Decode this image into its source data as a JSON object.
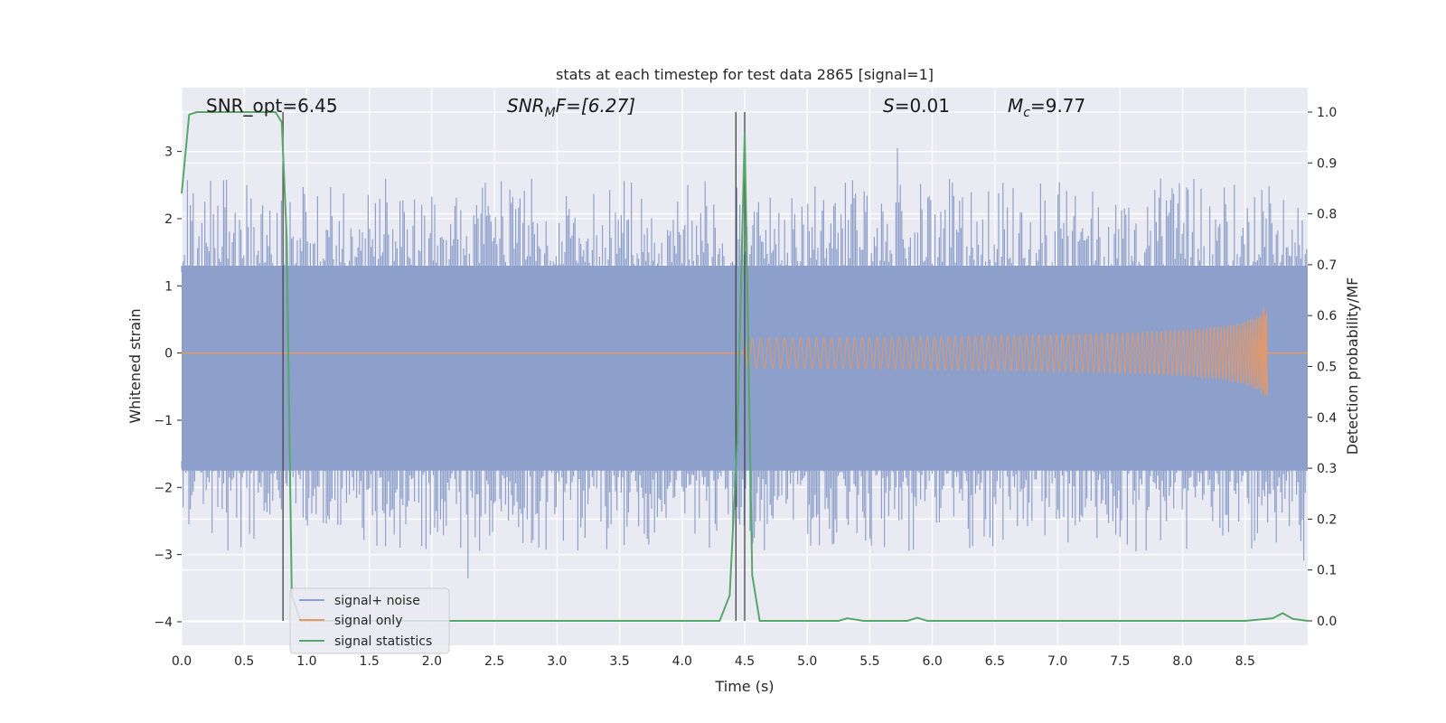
{
  "chart_data": {
    "type": "line",
    "title": "stats at each timestep for test data 2865 [signal=1]",
    "xlabel": "Time (s)",
    "ylabel_left": "Whitened strain",
    "ylabel_right": "Detection probability/MF",
    "xlim": [
      0.0,
      9.0
    ],
    "ylim_left": [
      -4.35,
      3.95
    ],
    "ylim_right": [
      -0.048,
      1.048
    ],
    "x_ticks": [
      "0.0",
      "0.5",
      "1.0",
      "1.5",
      "2.0",
      "2.5",
      "3.0",
      "3.5",
      "4.0",
      "4.5",
      "5.0",
      "5.5",
      "6.0",
      "6.5",
      "7.0",
      "7.5",
      "8.0",
      "8.5"
    ],
    "x_tick_values": [
      0.0,
      0.5,
      1.0,
      1.5,
      2.0,
      2.5,
      3.0,
      3.5,
      4.0,
      4.5,
      5.0,
      5.5,
      6.0,
      6.5,
      7.0,
      7.5,
      8.0,
      8.5
    ],
    "y_ticks_left": [
      "3",
      "2",
      "1",
      "0",
      "−1",
      "−2",
      "−3",
      "−4"
    ],
    "y_tick_values_left": [
      3,
      2,
      1,
      0,
      -1,
      -2,
      -3,
      -4
    ],
    "y_ticks_right": [
      "1.0",
      "0.9",
      "0.8",
      "0.7",
      "0.6",
      "0.5",
      "0.4",
      "0.3",
      "0.2",
      "0.1",
      "0.0"
    ],
    "y_tick_values_right": [
      1.0,
      0.9,
      0.8,
      0.7,
      0.6,
      0.5,
      0.4,
      0.3,
      0.2,
      0.1,
      0.0
    ],
    "grid": true,
    "legend_placement": "lower-left",
    "annotations": {
      "snr_opt": "SNR_opt=6.45",
      "snr_mf_label": "SNR",
      "snr_mf_sub": "M",
      "snr_mf_tail": "F=[6.27]",
      "s_label": "S",
      "s_value": "=0.01",
      "mc_label": "M",
      "mc_sub": "c",
      "mc_value": "=9.77"
    },
    "vertical_markers_x": [
      0.81,
      4.43,
      4.5
    ],
    "series": [
      {
        "name": "signal+ noise",
        "color": "#8da0cb",
        "axis": "left",
        "description_values": {
          "typical_abs_range": 1.7,
          "max": 3.4,
          "min": -3.7
        }
      },
      {
        "name": "signal only",
        "color": "#e59866",
        "axis": "left",
        "chirp": {
          "start_time": 4.5,
          "merger_time": 8.68,
          "peak_amplitude": 0.95
        }
      },
      {
        "name": "signal statistics",
        "color": "#55a868",
        "axis": "right",
        "x": [
          0.0,
          0.06,
          0.12,
          0.2,
          0.3,
          0.4,
          0.5,
          0.6,
          0.7,
          0.75,
          0.8,
          0.84,
          0.88,
          0.95,
          1.0,
          1.5,
          2.0,
          2.5,
          3.0,
          3.5,
          4.0,
          4.3,
          4.38,
          4.44,
          4.5,
          4.56,
          4.62,
          5.0,
          5.25,
          5.32,
          5.45,
          5.8,
          5.88,
          5.96,
          6.5,
          7.0,
          7.5,
          8.0,
          8.5,
          8.72,
          8.8,
          8.88,
          9.0
        ],
        "values": [
          0.84,
          0.995,
          1.0,
          1.0,
          1.0,
          1.0,
          1.0,
          1.0,
          1.0,
          1.0,
          0.98,
          0.75,
          0.05,
          0.0,
          0.0,
          0.0,
          0.0,
          0.0,
          0.0,
          0.0,
          0.0,
          0.0,
          0.05,
          0.35,
          0.96,
          0.09,
          0.0,
          0.0,
          0.0,
          0.005,
          0.0,
          0.0,
          0.006,
          0.0,
          0.0,
          0.0,
          0.0,
          0.0,
          0.0,
          0.005,
          0.015,
          0.004,
          0.0
        ]
      }
    ]
  }
}
